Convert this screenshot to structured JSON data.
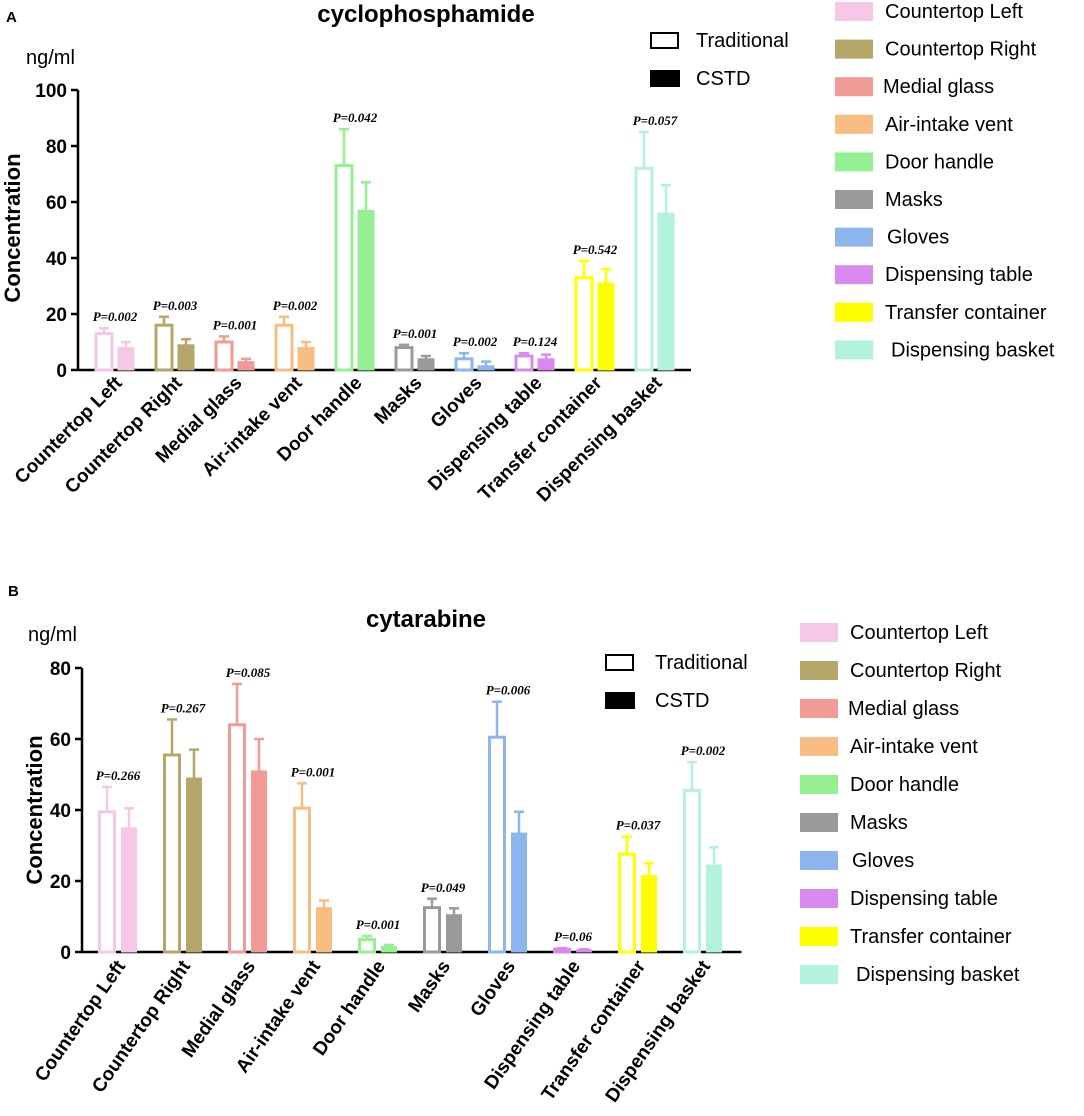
{
  "chart_data": [
    {
      "panel": "A",
      "type": "bar",
      "title": "cyclophosphamide",
      "unit": "ng/ml",
      "ylabel": "Concentration",
      "ylim": [
        0,
        100
      ],
      "yticks": [
        0,
        20,
        40,
        60,
        80,
        100
      ],
      "categories": [
        "Countertop Left",
        "Countertop Right",
        "Medial glass",
        "Air-intake vent",
        "Door handle",
        "Masks",
        "Gloves",
        "Dispensing table",
        "Transfer container",
        "Dispensing basket"
      ],
      "colors": [
        "#f7c8e6",
        "#b5a76a",
        "#f29a96",
        "#f7bd82",
        "#94f093",
        "#9a9a9c",
        "#8eb6ee",
        "#d98af0",
        "#ffff00",
        "#b3f2df"
      ],
      "series": [
        {
          "name": "Traditional",
          "style": "hollow",
          "values": [
            13,
            16,
            10,
            16,
            73,
            8,
            4,
            5,
            33,
            72
          ],
          "errors": [
            2,
            3,
            2,
            3,
            13,
            1,
            2,
            1,
            6,
            13
          ]
        },
        {
          "name": "CSTD",
          "style": "filled",
          "values": [
            8,
            9,
            3,
            8,
            57,
            4,
            1.5,
            4,
            31,
            56
          ],
          "errors": [
            2,
            2,
            1,
            2,
            10,
            1,
            1.5,
            1.5,
            5,
            10
          ]
        }
      ],
      "pvalues": [
        "P=0.002",
        "P=0.003",
        "P=0.001",
        "P=0.002",
        "P=0.042",
        "P=0.001",
        "P=0.002",
        "P=0.124",
        "P=0.542",
        "P=0.057"
      ],
      "legend_style": [
        "Traditional",
        "CSTD"
      ],
      "legend_colors": [
        "Countertop Left",
        "Countertop Right",
        "Medial glass",
        "Air-intake vent",
        "Door handle",
        "Masks",
        "Gloves",
        "Dispensing table",
        "Transfer container",
        "Dispensing basket"
      ]
    },
    {
      "panel": "B",
      "type": "bar",
      "title": "cytarabine",
      "unit": "ng/ml",
      "ylabel": "Concentration",
      "ylim": [
        0,
        80
      ],
      "yticks": [
        0,
        20,
        40,
        60,
        80
      ],
      "categories": [
        "Countertop Left",
        "Countertop Right",
        "Medial glass",
        "Air-intake vent",
        "Door handle",
        "Masks",
        "Gloves",
        "Dispensing table",
        "Transfer container",
        "Dispensing basket"
      ],
      "colors": [
        "#f7c8e6",
        "#b5a76a",
        "#f29a96",
        "#f7bd82",
        "#94f093",
        "#9a9a9c",
        "#8eb6ee",
        "#d98af0",
        "#ffff00",
        "#b3f2df"
      ],
      "series": [
        {
          "name": "Traditional",
          "style": "hollow",
          "values": [
            39.5,
            55.5,
            64,
            40.5,
            3.5,
            12.5,
            60.5,
            0.8,
            27.5,
            45.5
          ],
          "errors": [
            7,
            10,
            11.5,
            7,
            1,
            2.5,
            10,
            0.3,
            5,
            8
          ]
        },
        {
          "name": "CSTD",
          "style": "filled",
          "values": [
            35,
            49,
            51,
            12.5,
            1.5,
            10.5,
            33.5,
            0.6,
            21.5,
            24.5
          ],
          "errors": [
            5.5,
            8,
            9,
            2,
            0.5,
            1.8,
            6,
            0.2,
            3.5,
            5
          ]
        }
      ],
      "pvalues": [
        "P=0.266",
        "P=0.267",
        "P=0.085",
        "P=0.001",
        "P=0.001",
        "P=0.049",
        "P=0.006",
        "P=0.06",
        "P=0.037",
        "P=0.002"
      ],
      "legend_style": [
        "Traditional",
        "CSTD"
      ],
      "legend_colors": [
        "Countertop Left",
        "Countertop Right",
        "Medial glass",
        "Air-intake vent",
        "Door handle",
        "Masks",
        "Gloves",
        "Dispensing table",
        "Transfer container",
        "Dispensing basket"
      ]
    }
  ]
}
